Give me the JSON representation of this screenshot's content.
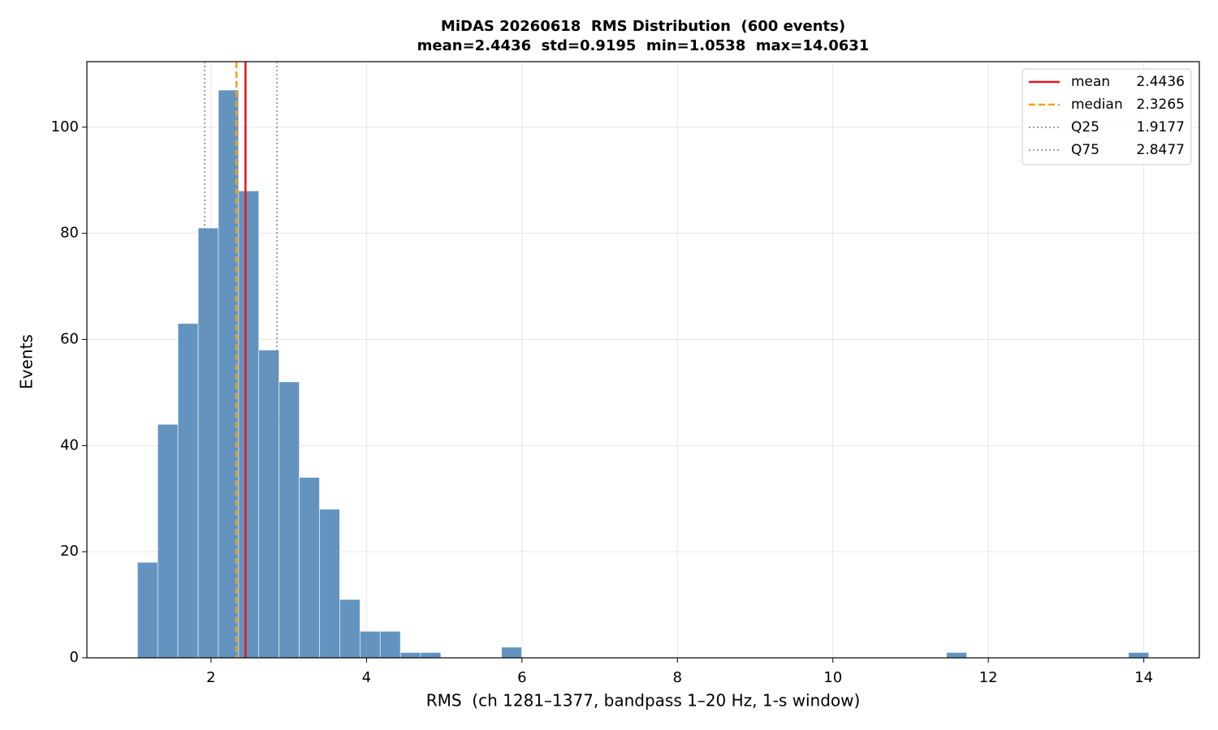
{
  "chart_data": {
    "type": "histogram",
    "title": "MiDAS 20260618  RMS Distribution  (600 events)",
    "subtitle": "mean=2.4436  std=0.9195  min=1.0538  max=14.0631",
    "xlabel": "RMS  (ch 1281–1377, bandpass 1–20 Hz, 1-s window)",
    "ylabel": "Events",
    "color": "#6394c0",
    "bins": [
      1.0538,
      1.314,
      1.5742,
      1.8344,
      2.0945,
      2.3547,
      2.6149,
      2.8751,
      3.1353,
      3.3955,
      3.6557,
      3.9158,
      4.176,
      4.4362,
      4.6964,
      4.9566,
      5.2168,
      5.477,
      5.7371,
      5.9973,
      6.2575,
      6.5177,
      6.7779,
      7.0381,
      7.2983,
      7.5585,
      7.8186,
      8.0788,
      8.339,
      8.5992,
      8.8594,
      9.1196,
      9.3798,
      9.6399,
      9.9001,
      10.1603,
      10.4205,
      10.6807,
      10.9409,
      11.2011,
      11.4612,
      11.7214,
      11.9816,
      12.2418,
      12.502,
      12.7622,
      13.0224,
      13.2825,
      13.5427,
      13.8029,
      14.0631
    ],
    "counts": [
      18,
      44,
      63,
      81,
      107,
      88,
      58,
      52,
      34,
      28,
      11,
      5,
      5,
      1,
      1,
      0,
      0,
      0,
      2,
      0,
      0,
      0,
      0,
      0,
      0,
      0,
      0,
      0,
      0,
      0,
      0,
      0,
      0,
      0,
      0,
      0,
      0,
      0,
      0,
      0,
      1,
      0,
      0,
      0,
      0,
      0,
      0,
      0,
      0,
      1
    ],
    "reference_lines": [
      {
        "name": "mean",
        "value": 2.4436,
        "color": "#e8141b",
        "style": "solid"
      },
      {
        "name": "median",
        "value": 2.3265,
        "color": "#f5a012",
        "style": "dashed"
      },
      {
        "name": "Q25",
        "value": 1.9177,
        "color": "#808080",
        "style": "dotted"
      },
      {
        "name": "Q75",
        "value": 2.8477,
        "color": "#808080",
        "style": "dotted"
      }
    ],
    "xlim": [
      0.403,
      14.714
    ],
    "ylim": [
      0,
      112.35
    ],
    "xticks": [
      2,
      4,
      6,
      8,
      10,
      12,
      14
    ],
    "yticks": [
      0,
      20,
      40,
      60,
      80,
      100
    ],
    "grid": true,
    "legend": "upper right"
  }
}
